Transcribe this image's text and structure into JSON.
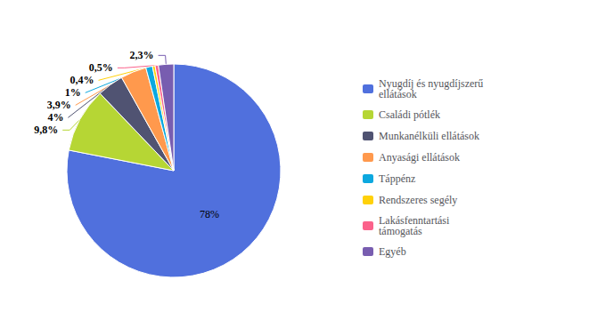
{
  "chart_data": {
    "type": "pie",
    "categories": [
      "Nyugdíj és nyugdíjszerű\nellátások",
      "Családi pótlék",
      "Munkanélküli ellátások",
      "Anyasági ellátások",
      "Táppénz",
      "Rendszeres segély",
      "Lakásfenntartási\ntámogatás",
      "Egyéb"
    ],
    "values": [
      78,
      9.8,
      4,
      3.9,
      1,
      0.4,
      0.5,
      2.3
    ],
    "value_labels": [
      "78%",
      "9,8%",
      "4%",
      "3,9%",
      "1%",
      "0,4%",
      "0,5%",
      "2,3%"
    ],
    "data_labels": true,
    "legend": "right"
  }
}
